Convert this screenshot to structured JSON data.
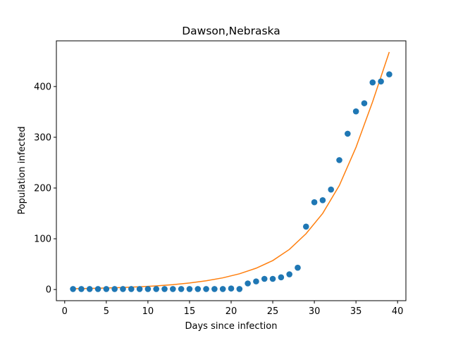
{
  "chart_data": {
    "type": "scatter",
    "title": "Dawson,Nebraska",
    "xlabel": "Days since infection",
    "ylabel": "Population infected",
    "xlim": [
      -1,
      41
    ],
    "ylim": [
      -22,
      490
    ],
    "xticks": [
      0,
      5,
      10,
      15,
      20,
      25,
      30,
      35,
      40
    ],
    "yticks": [
      0,
      100,
      200,
      300,
      400
    ],
    "grid": false,
    "colors": {
      "observed": "#1f77b4",
      "fit": "#ff7f0e"
    },
    "series": [
      {
        "kind": "scatter",
        "x": [
          1,
          2,
          3,
          4,
          5,
          6,
          7,
          8,
          9,
          10,
          11,
          12,
          13,
          14,
          15,
          16,
          17,
          18,
          19,
          20,
          21,
          22,
          23,
          24,
          25,
          26,
          27,
          28,
          29,
          30,
          31,
          32,
          33,
          34,
          35,
          36,
          37,
          38,
          39
        ],
        "values": [
          1,
          1,
          1,
          1,
          1,
          1,
          1,
          1,
          1,
          1,
          1,
          1,
          1,
          1,
          1,
          1,
          1,
          1,
          1,
          2,
          1,
          12,
          16,
          21,
          21,
          24,
          30,
          43,
          124,
          172,
          176,
          197,
          255,
          307,
          351,
          367,
          408,
          410,
          424
        ]
      },
      {
        "kind": "line",
        "x": [
          1,
          3,
          5,
          7,
          9,
          11,
          13,
          15,
          17,
          19,
          21,
          23,
          25,
          27,
          29,
          31,
          33,
          35,
          37,
          39
        ],
        "values": [
          1.5,
          2.1,
          2.9,
          4.0,
          5.4,
          7.2,
          9.6,
          12.8,
          17.2,
          23.0,
          31.0,
          42.0,
          57.0,
          79.0,
          110,
          150,
          205,
          280,
          370,
          468
        ]
      }
    ]
  }
}
